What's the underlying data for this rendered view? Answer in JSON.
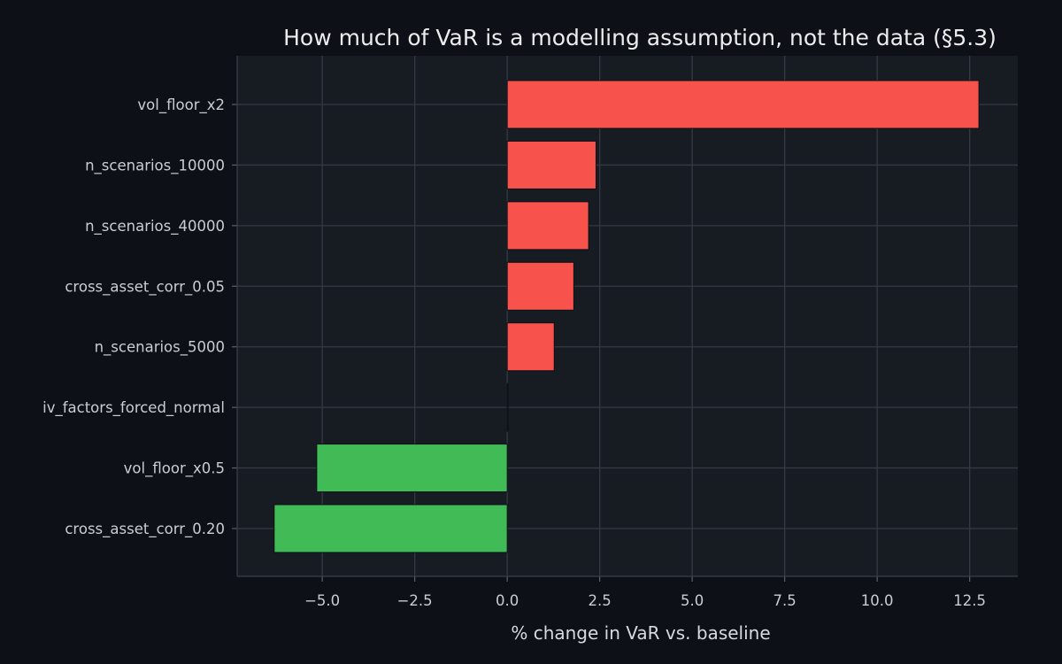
{
  "chart_data": {
    "type": "bar",
    "orientation": "horizontal",
    "title": "How much of VaR is a modelling assumption, not the data (§5.3)",
    "xlabel": "% change in VaR vs. baseline",
    "ylabel": "",
    "categories": [
      "vol_floor_x2",
      "n_scenarios_10000",
      "n_scenarios_40000",
      "cross_asset_corr_0.05",
      "n_scenarios_5000",
      "iv_factors_forced_normal",
      "vol_floor_x0.5",
      "cross_asset_corr_0.20"
    ],
    "values": [
      12.75,
      2.4,
      2.2,
      1.8,
      1.27,
      0.0,
      -5.15,
      -6.3
    ],
    "xlim": [
      -7.3,
      13.8
    ],
    "xticks": [
      -5.0,
      -2.5,
      0.0,
      2.5,
      5.0,
      7.5,
      10.0,
      12.5
    ],
    "xtick_labels": [
      "−5.0",
      "−2.5",
      "0.0",
      "2.5",
      "5.0",
      "7.5",
      "10.0",
      "12.5"
    ],
    "grid": true,
    "colors": {
      "positive": "#f8524d",
      "negative": "#41bb55",
      "plot_background": "#171b22",
      "figure_background": "#0d1017",
      "grid": "#343a44"
    }
  }
}
